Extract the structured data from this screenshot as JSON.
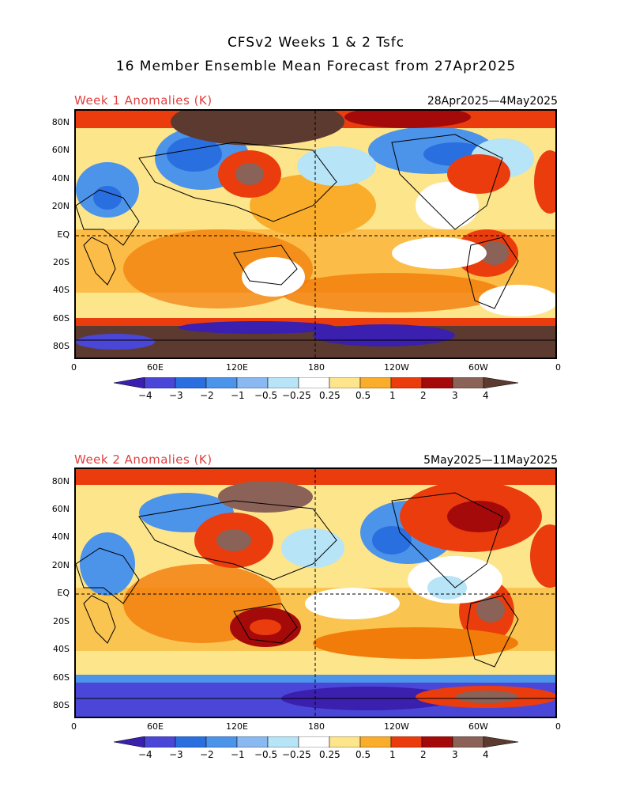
{
  "title": {
    "line1": "CFSv2 Weeks 1 & 2 Tsfc",
    "line2": "16 Member Ensemble Mean Forecast from 27Apr2025"
  },
  "colors": {
    "palette": [
      "#3b1fae",
      "#4a47d8",
      "#2a6fe0",
      "#4c93ea",
      "#8ab8f0",
      "#b7e4f7",
      "#ffffff",
      "#fde58c",
      "#f9ad2a",
      "#f27c0a",
      "#eb3c0e",
      "#a50a0a",
      "#8a6258",
      "#5c3a30"
    ],
    "title_red": "#e04040",
    "land_outline": "#000000"
  },
  "panels": [
    {
      "title": "Week 1 Anomalies (K)",
      "dates": "28Apr2025—4May2025",
      "lat_labels": [
        "80N",
        "60N",
        "40N",
        "20N",
        "EQ",
        "20S",
        "40S",
        "60S",
        "80S"
      ],
      "lon_labels": [
        "0",
        "60E",
        "120E",
        "180",
        "120W",
        "60W",
        "0"
      ]
    },
    {
      "title": "Week 2 Anomalies (K)",
      "dates": "5May2025—11May2025",
      "lat_labels": [
        "80N",
        "60N",
        "40N",
        "20N",
        "EQ",
        "20S",
        "40S",
        "60S",
        "80S"
      ],
      "lon_labels": [
        "0",
        "60E",
        "120E",
        "180",
        "120W",
        "60W",
        "0"
      ]
    }
  ],
  "colorbar": {
    "labels": [
      "−4",
      "−3",
      "−2",
      "−1",
      "−0.5",
      "−0.25",
      "0.25",
      "0.5",
      "1",
      "2",
      "3",
      "4"
    ]
  }
}
